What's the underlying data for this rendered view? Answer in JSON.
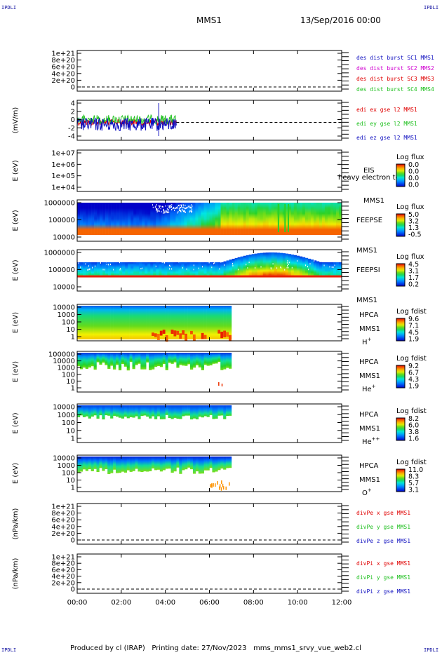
{
  "corner_labels": {
    "tl": "IPDLI",
    "tr": "IPDLI",
    "bl": "IPDLI",
    "br": "IPDLI"
  },
  "header": {
    "spacecraft": "MMS1",
    "date": "13/Sep/2016 00:00"
  },
  "footer": {
    "produced_by": "Produced by cl (IRAP)",
    "printing_date": "Printing date: 27/Nov/2023",
    "file": "mms_mms1_srvy_vue_web2.cl"
  },
  "colors": {
    "red": "#e00000",
    "magenta": "#d000d0",
    "green": "#20c020",
    "blue": "#1010c0"
  },
  "chart_data": [
    {
      "id": "des",
      "type": "line",
      "y_ticks": [
        "1e+21",
        "8e+20",
        "6e+20",
        "4e+20",
        "2e+20",
        "0"
      ],
      "legend": [
        {
          "name": "des dist burst SC1 MMS1",
          "color": "blue"
        },
        {
          "name": "des dist burst SC2 MMS2",
          "color": "magenta"
        },
        {
          "name": "des dist burst SC3 MMS3",
          "color": "red"
        },
        {
          "name": "des dist burst SC4 MMS4",
          "color": "green"
        }
      ]
    },
    {
      "id": "edi",
      "type": "line",
      "ylabel": "(mV/m)",
      "y_ticks": [
        "4",
        "2",
        "0",
        "-2",
        "-4"
      ],
      "legend": [
        {
          "name": "edi ex gse l2 MMS1",
          "color": "red"
        },
        {
          "name": "edi ey gse l2 MMS1",
          "color": "green"
        },
        {
          "name": "edi ez gse l2 MMS1",
          "color": "blue"
        }
      ],
      "x_end_hours": 4.5
    },
    {
      "id": "eis",
      "type": "heatmap",
      "ylabel": "E (eV)",
      "y_ticks": [
        "1e+07",
        "1e+06",
        "1e+05",
        "1e+04"
      ],
      "instrument": "EIS",
      "spacecraft": "MMS1",
      "overlay": "heavy electron tof",
      "colorbar_title": "Log flux",
      "colorbar_ticks": [
        "0.0",
        "0.0",
        "0.0",
        "0.0"
      ]
    },
    {
      "id": "feepse",
      "type": "heatmap",
      "ylabel": "E (eV)",
      "y_ticks": [
        "1000000",
        "100000",
        "10000"
      ],
      "instrument": "FEEPSE",
      "spacecraft": "MMS1",
      "colorbar_title": "Log flux",
      "colorbar_ticks": [
        "5.0",
        "3.2",
        "1.3",
        "-0.5"
      ]
    },
    {
      "id": "feepsi",
      "type": "heatmap",
      "ylabel": "E (eV)",
      "y_ticks": [
        "1000000",
        "100000",
        "10000"
      ],
      "instrument": "FEEPSI",
      "spacecraft": "MMS1",
      "colorbar_title": "Log flux",
      "colorbar_ticks": [
        "4.5",
        "3.1",
        "1.7",
        "0.2"
      ]
    },
    {
      "id": "hpca_h",
      "type": "heatmap",
      "ylabel": "E (eV)",
      "y_ticks": [
        "10000",
        "1000",
        "100",
        "10",
        "1"
      ],
      "instrument": "HPCA",
      "spacecraft": "MMS1",
      "species": "H",
      "charge": "+",
      "colorbar_title": "Log fdist",
      "colorbar_ticks": [
        "9.6",
        "7.1",
        "4.5",
        "1.9"
      ],
      "x_end_hours": 7.0
    },
    {
      "id": "hpca_he",
      "type": "heatmap",
      "ylabel": "E (eV)",
      "y_ticks": [
        "100000",
        "10000",
        "1000",
        "100",
        "10",
        "1"
      ],
      "instrument": "HPCA",
      "spacecraft": "MMS1",
      "species": "He",
      "charge": "+",
      "colorbar_title": "Log fdist",
      "colorbar_ticks": [
        "9.2",
        "6.7",
        "4.3",
        "1.9"
      ],
      "x_end_hours": 7.0
    },
    {
      "id": "hpca_hepp",
      "type": "heatmap",
      "ylabel": "E (eV)",
      "y_ticks": [
        "10000",
        "1000",
        "100",
        "10",
        "1"
      ],
      "instrument": "HPCA",
      "spacecraft": "MMS1",
      "species": "He",
      "charge": "++",
      "colorbar_title": "Log fdist",
      "colorbar_ticks": [
        "8.2",
        "6.0",
        "3.8",
        "1.6"
      ],
      "x_end_hours": 7.0
    },
    {
      "id": "hpca_o",
      "type": "heatmap",
      "ylabel": "E (eV)",
      "y_ticks": [
        "10000",
        "1000",
        "100",
        "10",
        "1"
      ],
      "instrument": "HPCA",
      "spacecraft": "MMS1",
      "species": "O",
      "charge": "+",
      "colorbar_title": "Log fdist",
      "colorbar_ticks": [
        "11.0",
        "8.3",
        "5.7",
        "3.1"
      ],
      "x_end_hours": 7.0
    },
    {
      "id": "divpe",
      "type": "line",
      "ylabel": "(nPa/km)",
      "y_ticks": [
        "1e+21",
        "8e+20",
        "6e+20",
        "4e+20",
        "2e+20",
        "0"
      ],
      "legend": [
        {
          "name": "divPe x gse MMS1",
          "color": "red"
        },
        {
          "name": "divPe y gse MMS1",
          "color": "green"
        },
        {
          "name": "divPe z gse MMS1",
          "color": "blue"
        }
      ]
    },
    {
      "id": "divpi",
      "type": "line",
      "ylabel": "(nPa/km)",
      "y_ticks": [
        "1e+21",
        "8e+20",
        "6e+20",
        "4e+20",
        "2e+20",
        "0"
      ],
      "legend": [
        {
          "name": "divPi x gse MMS1",
          "color": "red"
        },
        {
          "name": "divPi y gse MMS1",
          "color": "green"
        },
        {
          "name": "divPi z gse MMS1",
          "color": "blue"
        }
      ]
    }
  ],
  "x_axis": {
    "ticks": [
      "00:00",
      "02:00",
      "04:00",
      "06:00",
      "08:00",
      "10:00",
      "12:00"
    ],
    "range_hours": [
      0,
      12
    ]
  }
}
